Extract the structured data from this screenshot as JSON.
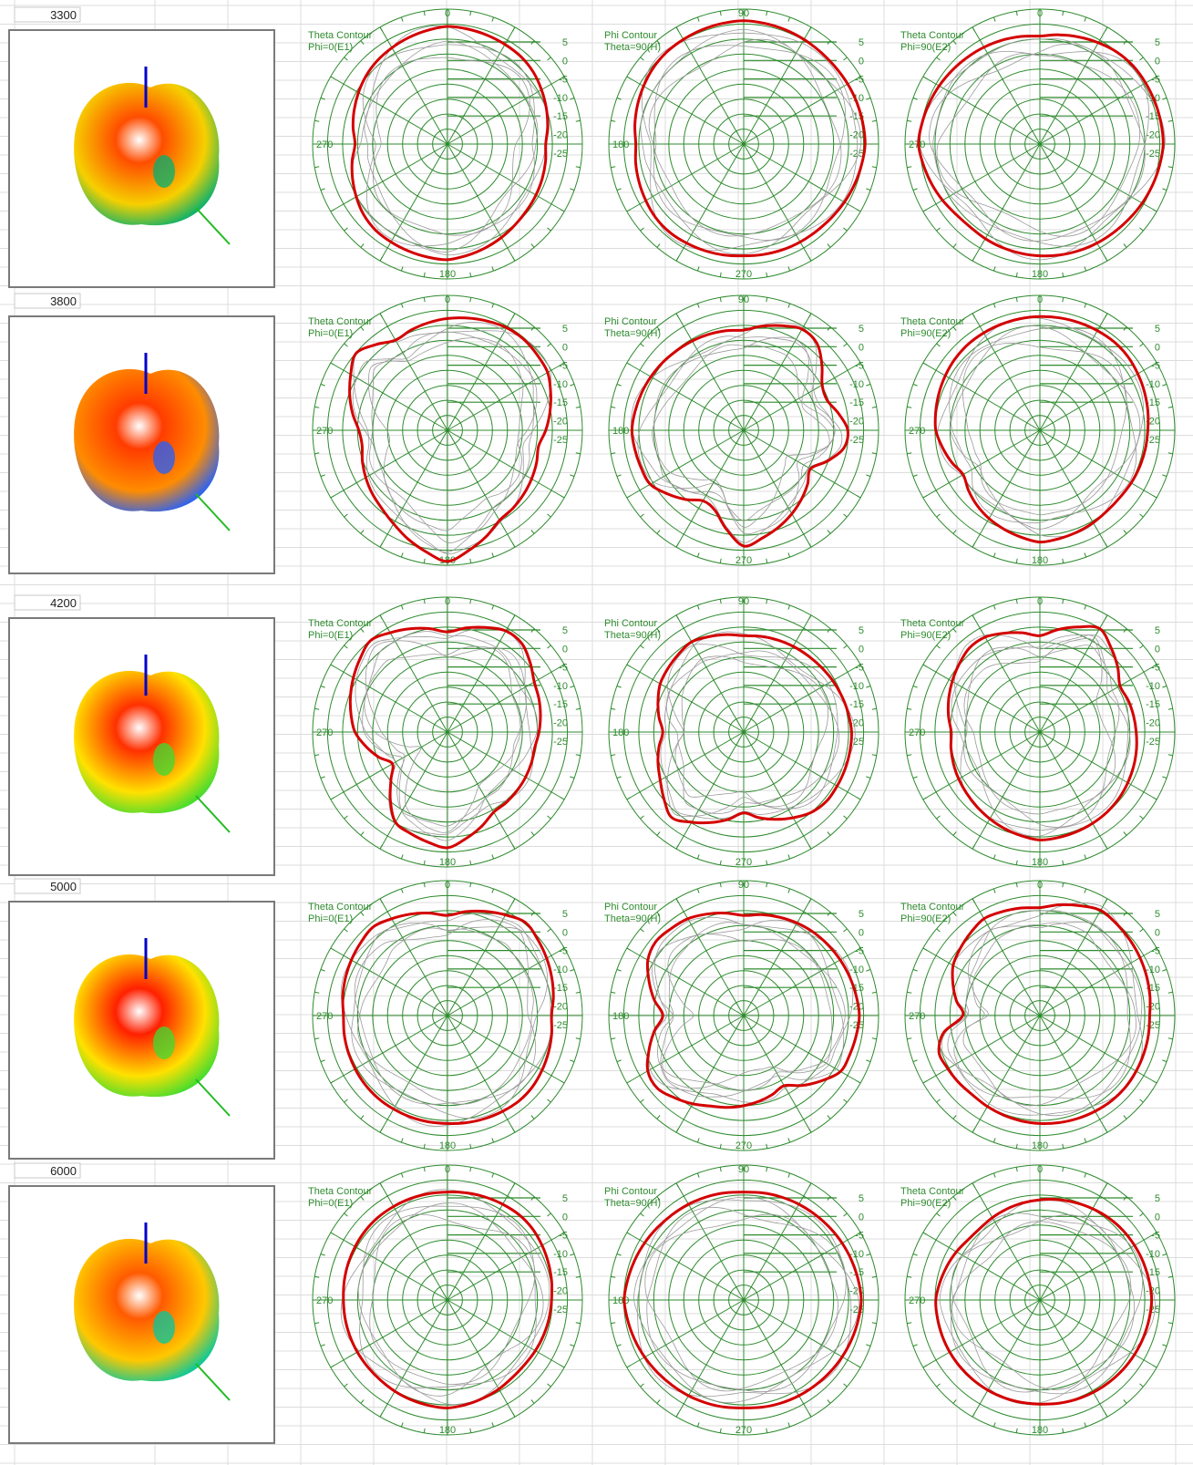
{
  "colors": {
    "grid_green": "#2e8b2e",
    "main_trace": "#d40000",
    "other_traces": "#9a9a9a",
    "pattern_ramp": [
      "#ff0000",
      "#ff8c00",
      "#ffe100",
      "#3cdc32",
      "#00c8c8",
      "#0000ff"
    ]
  },
  "chart_data": [
    {
      "type": "polar",
      "frequency": "3300",
      "pattern_colors": {
        "body": "#ff4d00",
        "accent": "#f6d000",
        "spots": "#00b070"
      },
      "tick_labels": [
        "5",
        "0",
        "-5",
        "-10",
        "-15",
        "-20",
        "-25"
      ],
      "rlim": [
        -30,
        5
      ],
      "panels": [
        {
          "title": [
            "Theta Contour",
            "Phi=0(E1)"
          ],
          "angle_labels": [
            "0",
            "270",
            "180"
          ],
          "angles_deg": [
            0,
            45,
            90,
            135,
            180,
            225,
            270,
            315
          ],
          "gain_db": [
            0.5,
            -0.5,
            -4.5,
            -3,
            0,
            -1,
            -6,
            -2
          ]
        },
        {
          "title": [
            "Phi Contour",
            "Theta=90(H)"
          ],
          "angle_labels": [
            "90",
            "180",
            "270"
          ],
          "angles_deg": [
            0,
            45,
            90,
            135,
            180,
            225,
            270,
            315
          ],
          "gain_db": [
            2,
            1,
            1.5,
            -0.5,
            -1,
            0,
            -2,
            1
          ]
        },
        {
          "title": [
            "Theta Contour",
            "Phi=90(E2)"
          ],
          "angle_labels": [
            "0",
            "270",
            "180"
          ],
          "angles_deg": [
            0,
            45,
            90,
            135,
            180,
            225,
            270,
            315
          ],
          "gain_db": [
            -2,
            1.5,
            2,
            0,
            -1,
            -2,
            1.5,
            -0.5
          ]
        }
      ]
    },
    {
      "type": "polar",
      "frequency": "3800",
      "pattern_colors": {
        "body": "#ff3c00",
        "accent": "#ff8c00",
        "spots": "#2060ff"
      },
      "tick_labels": [
        "5",
        "0",
        "-5",
        "-10",
        "-15",
        "-20",
        "-25"
      ],
      "rlim": [
        -30,
        5
      ],
      "panels": [
        {
          "title": [
            "Theta Contour",
            "Phi=0(E1)"
          ],
          "angle_labels": [
            "0",
            "270",
            "180"
          ],
          "angles_deg": [
            0,
            35,
            60,
            100,
            150,
            180,
            215,
            265,
            310,
            330
          ],
          "gain_db": [
            -1,
            1,
            0,
            -6,
            -3,
            4,
            -3,
            -8,
            1,
            -3
          ]
        },
        {
          "title": [
            "Phi Contour",
            "Theta=90(H)"
          ],
          "angle_labels": [
            "90",
            "180",
            "270"
          ],
          "angles_deg": [
            0,
            35,
            65,
            95,
            120,
            180,
            205,
            240,
            270,
            320
          ],
          "gain_db": [
            -4,
            1,
            -8,
            -2,
            -10,
            0,
            -10,
            -2,
            -1,
            -3
          ]
        },
        {
          "title": [
            "Theta Contour",
            "Phi=90(E2)"
          ],
          "angle_labels": [
            "0",
            "270",
            "180"
          ],
          "angles_deg": [
            0,
            45,
            90,
            135,
            180,
            215,
            240,
            270,
            315
          ],
          "gain_db": [
            -0.5,
            0,
            -2,
            -3,
            -1,
            -4,
            -7,
            -3,
            -1
          ]
        }
      ]
    },
    {
      "type": "polar",
      "frequency": "4200",
      "pattern_colors": {
        "body": "#ff3000",
        "accent": "#ffe100",
        "spots": "#3cdc32"
      },
      "tick_labels": [
        "5",
        "0",
        "-5",
        "-10",
        "-15",
        "-20",
        "-25"
      ],
      "rlim": [
        -30,
        5
      ],
      "panels": [
        {
          "title": [
            "Theta Contour",
            "Phi=0(E1)"
          ],
          "angle_labels": [
            "0",
            "270",
            "180"
          ],
          "angles_deg": [
            0,
            35,
            60,
            100,
            150,
            180,
            210,
            238,
            270,
            320
          ],
          "gain_db": [
            -4,
            1,
            -4,
            -7,
            -6,
            0,
            -3,
            -14,
            -6,
            1
          ]
        },
        {
          "title": [
            "Phi Contour",
            "Theta=90(H)"
          ],
          "angle_labels": [
            "90",
            "180",
            "270"
          ],
          "angles_deg": [
            0,
            45,
            90,
            135,
            180,
            220,
            240,
            270,
            300,
            330
          ],
          "gain_db": [
            -5,
            -4,
            -2,
            -2,
            -9,
            -1,
            -5,
            -9,
            -5,
            -3
          ]
        },
        {
          "title": [
            "Theta Contour",
            "Phi=90(E2)"
          ],
          "angle_labels": [
            "0",
            "270",
            "180"
          ],
          "angles_deg": [
            0,
            30,
            60,
            90,
            135,
            180,
            225,
            270,
            325
          ],
          "gain_db": [
            -5,
            1,
            -6,
            -5,
            -3,
            -2,
            -5,
            -7,
            -1
          ]
        }
      ]
    },
    {
      "type": "polar",
      "frequency": "5000",
      "pattern_colors": {
        "body": "#ff2000",
        "accent": "#ffe100",
        "spots": "#3cdc32"
      },
      "tick_labels": [
        "5",
        "0",
        "-5",
        "-10",
        "-15",
        "-20",
        "-25"
      ],
      "rlim": [
        -30,
        5
      ],
      "panels": [
        {
          "title": [
            "Theta Contour",
            "Phi=0(E1)"
          ],
          "angle_labels": [
            "0",
            "270",
            "180"
          ],
          "angles_deg": [
            0,
            40,
            90,
            135,
            180,
            225,
            270,
            320
          ],
          "gain_db": [
            -4,
            1.5,
            -3,
            -1,
            -2,
            -2,
            -3,
            0
          ]
        },
        {
          "title": [
            "Phi Contour",
            "Theta=90(H)"
          ],
          "angle_labels": [
            "90",
            "180",
            "270"
          ],
          "angles_deg": [
            0,
            35,
            90,
            120,
            150,
            200,
            235,
            270,
            305,
            330
          ],
          "gain_db": [
            -4,
            -2,
            0,
            -1,
            -9,
            -5,
            0,
            -9,
            0,
            -1
          ]
        },
        {
          "title": [
            "Theta Contour",
            "Phi=90(E2)"
          ],
          "angle_labels": [
            "0",
            "270",
            "180"
          ],
          "angles_deg": [
            0,
            30,
            90,
            135,
            180,
            220,
            255,
            270,
            300,
            330
          ],
          "gain_db": [
            -2,
            1.5,
            -1.5,
            -1,
            -2,
            -3,
            -2,
            -10,
            -4,
            -1
          ]
        }
      ]
    },
    {
      "type": "polar",
      "frequency": "6000",
      "pattern_colors": {
        "body": "#ff5a00",
        "accent": "#ffc800",
        "spots": "#00c8a0"
      },
      "tick_labels": [
        "5",
        "0",
        "-5",
        "-10",
        "-15",
        "-20",
        "-25"
      ],
      "rlim": [
        -30,
        5
      ],
      "panels": [
        {
          "title": [
            "Theta Contour",
            "Phi=0(E1)"
          ],
          "angle_labels": [
            "0",
            "270",
            "180"
          ],
          "angles_deg": [
            0,
            45,
            90,
            135,
            180,
            225,
            270,
            315
          ],
          "gain_db": [
            -2,
            -1,
            -3,
            -4,
            -2,
            -3,
            -3,
            -2
          ]
        },
        {
          "title": [
            "Phi Contour",
            "Theta=90(H)"
          ],
          "angle_labels": [
            "90",
            "180",
            "270"
          ],
          "angles_deg": [
            0,
            45,
            90,
            135,
            180,
            225,
            270,
            315
          ],
          "gain_db": [
            -2,
            -1,
            0.5,
            -1,
            -2,
            -1,
            1,
            -1
          ]
        },
        {
          "title": [
            "Theta Contour",
            "Phi=90(E2)"
          ],
          "angle_labels": [
            "0",
            "270",
            "180"
          ],
          "angles_deg": [
            0,
            45,
            90,
            135,
            180,
            225,
            270,
            315
          ],
          "gain_db": [
            -4,
            -2,
            -1,
            -2,
            -3,
            -3,
            -3,
            -6
          ]
        }
      ]
    }
  ]
}
